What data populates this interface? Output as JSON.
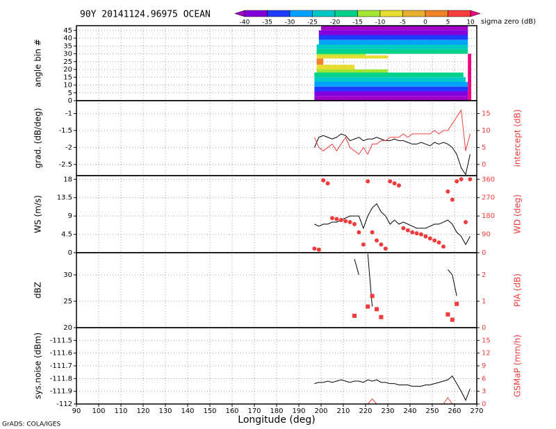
{
  "title": "90Y 20141124.96975 OCEAN",
  "footer": "GrADS: COLA/IGES",
  "colorbar": {
    "label": "sigma zero (dB)",
    "levels": [
      -40,
      -35,
      -30,
      -25,
      -20,
      -15,
      -10,
      -5,
      0,
      5,
      10
    ],
    "colors": [
      "#a000c8",
      "#8200dc",
      "#1e3cff",
      "#00a0ff",
      "#00c8c8",
      "#00d28c",
      "#a0e632",
      "#e6dc32",
      "#e6af2d",
      "#f08228",
      "#fa3c3c",
      "#f00082"
    ]
  },
  "chart_data": [
    {
      "type": "heatmap",
      "ylabel": "angle bin #",
      "xlim": [
        90,
        270
      ],
      "ylim": [
        0,
        48
      ],
      "yticks": [
        0,
        5,
        10,
        15,
        20,
        25,
        30,
        35,
        40,
        45
      ],
      "cells": [
        {
          "bins": [
            0,
            3
          ],
          "lon": [
            197,
            266
          ],
          "value": -42
        },
        {
          "bins": [
            3,
            6
          ],
          "lon": [
            197,
            266
          ],
          "value": -37
        },
        {
          "bins": [
            6,
            9
          ],
          "lon": [
            197,
            266
          ],
          "value": -32
        },
        {
          "bins": [
            9,
            12
          ],
          "lon": [
            197,
            266
          ],
          "value": -27
        },
        {
          "bins": [
            12,
            15
          ],
          "lon": [
            197,
            265
          ],
          "value": -22
        },
        {
          "bins": [
            15,
            18
          ],
          "lon": [
            197,
            264
          ],
          "value": -17
        },
        {
          "bins": [
            18,
            20
          ],
          "lon": [
            198,
            230
          ],
          "value": -12
        },
        {
          "bins": [
            20,
            23
          ],
          "lon": [
            198,
            215
          ],
          "value": -7
        },
        {
          "bins": [
            23,
            27
          ],
          "lon": [
            198,
            201
          ],
          "value": 2
        },
        {
          "bins": [
            27,
            29
          ],
          "lon": [
            198,
            230
          ],
          "value": -7
        },
        {
          "bins": [
            29,
            30
          ],
          "lon": [
            198,
            220
          ],
          "value": -12
        },
        {
          "bins": [
            30,
            33
          ],
          "lon": [
            198,
            266
          ],
          "value": -17
        },
        {
          "bins": [
            33,
            36
          ],
          "lon": [
            198,
            266
          ],
          "value": -22
        },
        {
          "bins": [
            36,
            39
          ],
          "lon": [
            199,
            266
          ],
          "value": -27
        },
        {
          "bins": [
            39,
            42
          ],
          "lon": [
            199,
            266
          ],
          "value": -32
        },
        {
          "bins": [
            42,
            45
          ],
          "lon": [
            199,
            266
          ],
          "value": -37
        },
        {
          "bins": [
            45,
            48
          ],
          "lon": [
            200,
            266
          ],
          "value": -42
        },
        {
          "bins": [
            0,
            30
          ],
          "lon": [
            266,
            267.5
          ],
          "value": 12
        }
      ]
    },
    {
      "type": "line",
      "ylabel": "grad. (dB/deg)",
      "y2label": "intercept (dB)",
      "xlim": [
        90,
        270
      ],
      "ylim": [
        -2.83,
        -0.62
      ],
      "yticks": [
        -2.5,
        -2,
        -1.5,
        -1
      ],
      "y2lim": [
        -3.3,
        18.8
      ],
      "y2ticks": [
        0,
        5,
        10,
        15
      ],
      "x": [
        197,
        199,
        201,
        203,
        205,
        207,
        209,
        211,
        213,
        215,
        217,
        219,
        221,
        223,
        225,
        227,
        229,
        231,
        233,
        235,
        237,
        239,
        241,
        243,
        245,
        247,
        249,
        251,
        253,
        255,
        257,
        259,
        261,
        263,
        265,
        267
      ],
      "series": [
        {
          "color": "#000000",
          "style": "line",
          "values": [
            -2.0,
            -1.7,
            -1.65,
            -1.7,
            -1.75,
            -1.7,
            -1.6,
            -1.65,
            -1.8,
            -1.75,
            -1.7,
            -1.8,
            -1.75,
            -1.75,
            -1.7,
            -1.75,
            -1.8,
            -1.8,
            -1.75,
            -1.8,
            -1.8,
            -1.85,
            -1.9,
            -1.9,
            -1.85,
            -1.9,
            -1.95,
            -1.85,
            -1.9,
            -1.85,
            -1.9,
            -2.0,
            -2.2,
            -2.6,
            -2.8,
            -2.2
          ]
        },
        {
          "color": "#f03c3c",
          "style": "line",
          "axis": "y2",
          "values": [
            8,
            5,
            4,
            5,
            6,
            4,
            6,
            8,
            5,
            4,
            3,
            5,
            3,
            6,
            6,
            7,
            7,
            8,
            8,
            8,
            9,
            8,
            9,
            9,
            9,
            9,
            9,
            10,
            9,
            10,
            10,
            12,
            14,
            16,
            4,
            9
          ]
        }
      ]
    },
    {
      "type": "line",
      "ylabel": "WS (m/s)",
      "y2label": "WD (deg)",
      "xlim": [
        90,
        270
      ],
      "ylim": [
        0,
        18.9
      ],
      "yticks": [
        0,
        4.5,
        9,
        13.5,
        18
      ],
      "y2lim": [
        0,
        378
      ],
      "y2ticks": [
        0,
        90,
        180,
        270,
        360
      ],
      "x": [
        197,
        199,
        201,
        203,
        205,
        207,
        209,
        211,
        213,
        215,
        217,
        219,
        221,
        223,
        225,
        227,
        229,
        231,
        233,
        235,
        237,
        239,
        241,
        243,
        245,
        247,
        249,
        251,
        253,
        255,
        257,
        259,
        261,
        263,
        265,
        267
      ],
      "series": [
        {
          "color": "#000000",
          "style": "line",
          "values": [
            7,
            6.5,
            7,
            7,
            7.5,
            7.5,
            8,
            8.5,
            9,
            9,
            9,
            6,
            9,
            11,
            12,
            10,
            9,
            7,
            8,
            7,
            7.5,
            7,
            6.5,
            6,
            6,
            6,
            6.5,
            7,
            7,
            7.5,
            8,
            7,
            5,
            4,
            2,
            4
          ]
        },
        {
          "color": "#f03c3c",
          "style": "dots",
          "axis": "y2",
          "values": [
            20,
            15,
            355,
            340,
            170,
            165,
            160,
            155,
            150,
            140,
            100,
            40,
            350,
            100,
            60,
            40,
            20,
            350,
            340,
            330,
            120,
            110,
            100,
            95,
            90,
            80,
            70,
            60,
            50,
            30,
            300,
            260,
            350,
            360,
            150,
            360
          ]
        }
      ]
    },
    {
      "type": "line",
      "ylabel": "dBZ",
      "y2label": "PIA (dB)",
      "xlim": [
        90,
        270
      ],
      "ylim": [
        20,
        34.2
      ],
      "yticks": [
        20,
        25,
        30
      ],
      "y2lim": [
        0,
        2.84
      ],
      "y2ticks": [
        0,
        1,
        2
      ],
      "x": [
        197,
        199,
        201,
        203,
        205,
        207,
        209,
        211,
        213,
        215,
        217,
        219,
        221,
        223,
        225,
        227,
        229,
        231,
        233,
        235,
        237,
        239,
        241,
        243,
        245,
        247,
        249,
        251,
        253,
        255,
        257,
        259,
        261,
        263,
        265,
        267
      ],
      "series": [
        {
          "color": "#000000",
          "style": "line",
          "values": [
            null,
            null,
            null,
            null,
            null,
            null,
            null,
            null,
            null,
            33,
            30,
            null,
            34,
            24,
            null,
            null,
            null,
            null,
            null,
            null,
            null,
            null,
            null,
            null,
            null,
            null,
            null,
            null,
            null,
            null,
            31,
            30,
            26,
            null,
            null,
            null
          ]
        },
        {
          "color": "#f03c3c",
          "style": "squares",
          "axis": "y2",
          "values": [
            null,
            null,
            null,
            null,
            null,
            null,
            null,
            null,
            null,
            0.45,
            null,
            null,
            0.8,
            1.2,
            0.7,
            0.4,
            null,
            null,
            null,
            null,
            null,
            null,
            null,
            null,
            null,
            null,
            null,
            null,
            null,
            null,
            0.5,
            0.3,
            0.9,
            null,
            null,
            null
          ]
        }
      ]
    },
    {
      "type": "line",
      "ylabel": "sys.noise (dBm)",
      "y2label": "GSMaP (mm/h)",
      "xlabel": "Longitude (deg)",
      "xlim": [
        90,
        270
      ],
      "xticks": [
        90,
        100,
        110,
        120,
        130,
        140,
        150,
        160,
        170,
        180,
        190,
        200,
        210,
        220,
        230,
        240,
        250,
        260,
        270
      ],
      "ylim": [
        -112,
        -111.4
      ],
      "yticks": [
        -112,
        -111.9,
        -111.8,
        -111.7,
        -111.6,
        -111.5
      ],
      "y2lim": [
        0,
        18
      ],
      "y2ticks": [
        0,
        3,
        6,
        9,
        12,
        15
      ],
      "x": [
        197,
        199,
        201,
        203,
        205,
        207,
        209,
        211,
        213,
        215,
        217,
        219,
        221,
        223,
        225,
        227,
        229,
        231,
        233,
        235,
        237,
        239,
        241,
        243,
        245,
        247,
        249,
        251,
        253,
        255,
        257,
        259,
        261,
        263,
        265,
        267
      ],
      "series": [
        {
          "color": "#000000",
          "style": "line",
          "values": [
            -111.84,
            -111.83,
            -111.83,
            -111.82,
            -111.83,
            -111.82,
            -111.81,
            -111.82,
            -111.83,
            -111.82,
            -111.82,
            -111.83,
            -111.81,
            -111.82,
            -111.81,
            -111.83,
            -111.83,
            -111.84,
            -111.84,
            -111.85,
            -111.85,
            -111.85,
            -111.86,
            -111.86,
            -111.86,
            -111.85,
            -111.85,
            -111.84,
            -111.83,
            -111.82,
            -111.81,
            -111.78,
            -111.84,
            -111.9,
            -111.97,
            -111.88
          ]
        },
        {
          "color": "#f03c3c",
          "style": "line",
          "axis": "y2",
          "values": [
            null,
            null,
            null,
            null,
            null,
            null,
            null,
            null,
            null,
            null,
            null,
            null,
            0,
            1.2,
            0,
            null,
            null,
            null,
            null,
            null,
            null,
            null,
            null,
            null,
            null,
            null,
            null,
            null,
            null,
            0,
            1.5,
            0,
            null,
            null,
            null,
            null
          ]
        }
      ]
    }
  ]
}
